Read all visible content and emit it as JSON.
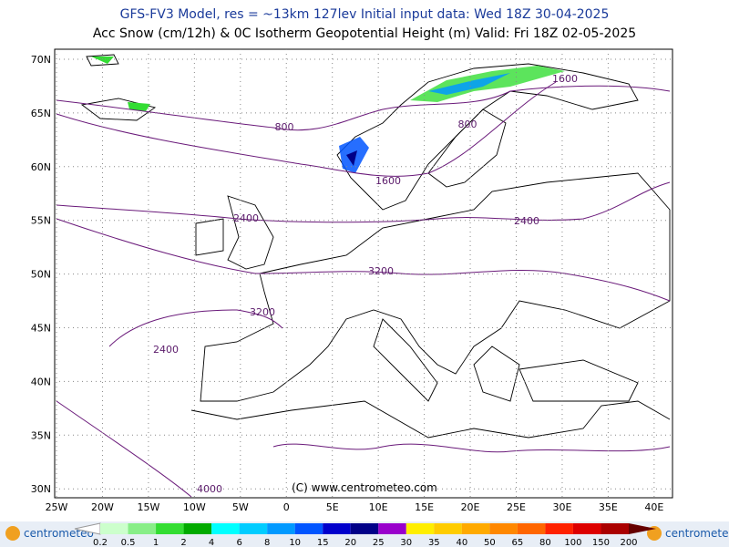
{
  "header": {
    "line1": "GFS-FV3 Model, res = ~13km 127lev   Initial input data: Wed 18Z 30-04-2025",
    "line2": "Acc Snow (cm/12h) & 0C Isotherm Geopotential Height (m)  Valid: Fri 18Z 02-05-2025"
  },
  "map": {
    "lat_labels": [
      "70N",
      "65N",
      "60N",
      "55N",
      "50N",
      "45N",
      "40N",
      "35N",
      "30N"
    ],
    "lon_labels": [
      "25W",
      "20W",
      "15W",
      "10W",
      "5W",
      "0",
      "5E",
      "10E",
      "15E",
      "20E",
      "25E",
      "30E",
      "35E",
      "40E"
    ],
    "contour_labels": [
      "1600",
      "800",
      "800",
      "1600",
      "2400",
      "2400",
      "3200",
      "3200",
      "2400",
      "4000"
    ],
    "credit": "(C) www.centrometeo.com"
  },
  "legend": {
    "labels": [
      "0.2",
      "0.5",
      "1",
      "2",
      "4",
      "6",
      "8",
      "10",
      "15",
      "20",
      "25",
      "30",
      "35",
      "40",
      "50",
      "65",
      "80",
      "100",
      "150",
      "200"
    ],
    "colors": [
      "#ccffcc",
      "#88ee88",
      "#33dd33",
      "#00aa00",
      "#00ffff",
      "#00ccff",
      "#0099ff",
      "#0055ff",
      "#0000cc",
      "#000088",
      "#9900cc",
      "#ffee00",
      "#ffcc00",
      "#ffaa00",
      "#ff8800",
      "#ff6600",
      "#ff2200",
      "#dd0000",
      "#aa0000"
    ],
    "logo_left": "centrometeo",
    "logo_right": "centrometeo"
  }
}
